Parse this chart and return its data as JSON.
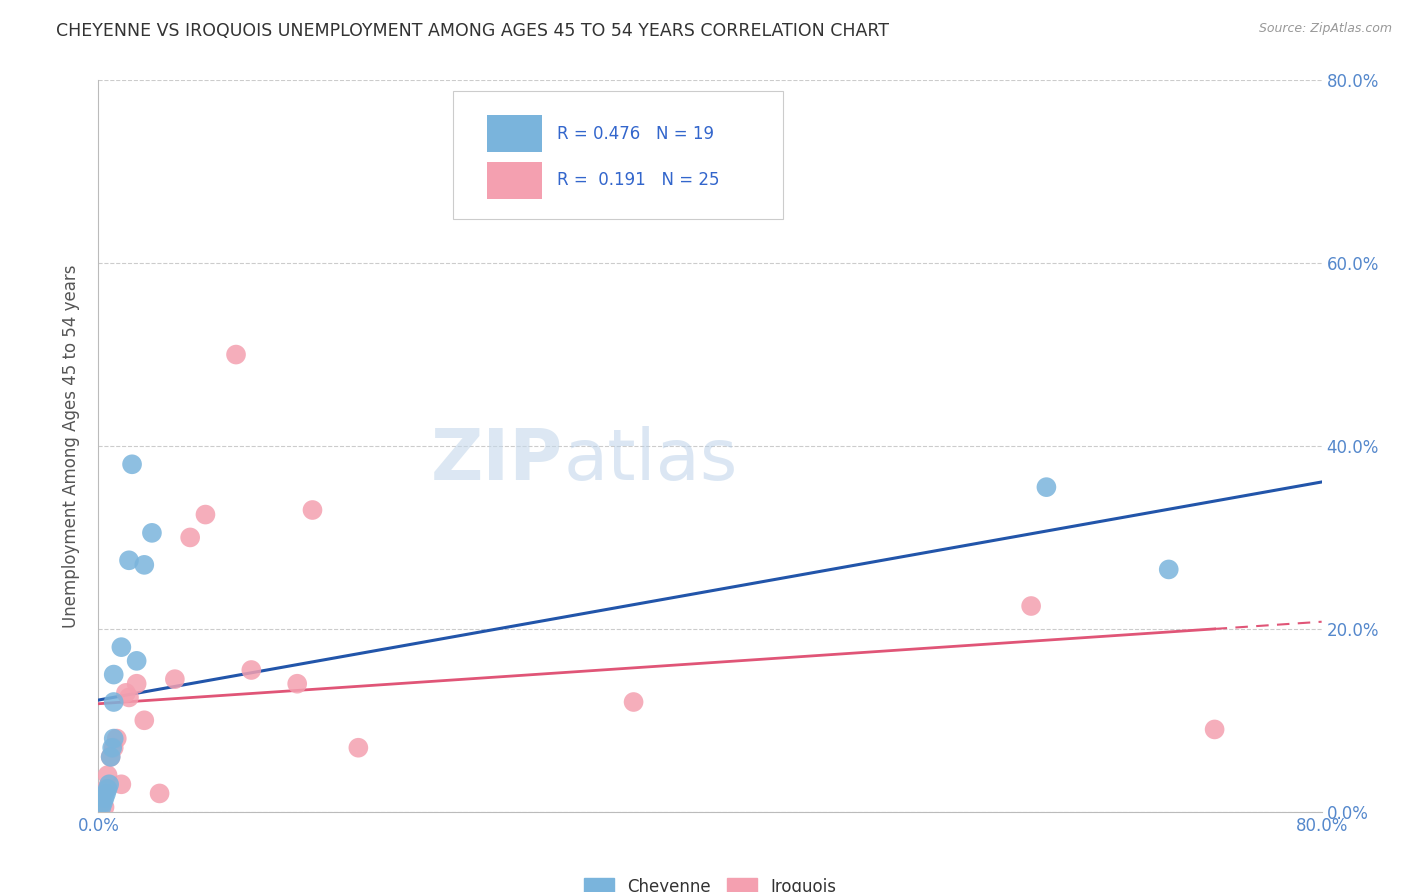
{
  "title": "CHEYENNE VS IROQUOIS UNEMPLOYMENT AMONG AGES 45 TO 54 YEARS CORRELATION CHART",
  "source": "Source: ZipAtlas.com",
  "ylabel": "Unemployment Among Ages 45 to 54 years",
  "xlim": [
    0.0,
    0.8
  ],
  "ylim": [
    0.0,
    0.8
  ],
  "xticks": [
    0.0,
    0.2,
    0.4,
    0.6,
    0.8
  ],
  "yticks": [
    0.0,
    0.2,
    0.4,
    0.6,
    0.8
  ],
  "xticklabels": [
    "0.0%",
    "",
    "",
    "",
    "80.0%"
  ],
  "yticklabels_right": [
    "0.0%",
    "20.0%",
    "40.0%",
    "60.0%",
    "80.0%"
  ],
  "cheyenne_color": "#7ab4dc",
  "iroquois_color": "#f4a0b0",
  "trendline_cheyenne_color": "#2255aa",
  "trendline_iroquois_color": "#e05577",
  "legend_r_cheyenne": "0.476",
  "legend_n_cheyenne": "19",
  "legend_r_iroquois": "0.191",
  "legend_n_iroquois": "25",
  "cheyenne_x": [
    0.002,
    0.003,
    0.004,
    0.005,
    0.006,
    0.007,
    0.008,
    0.009,
    0.01,
    0.01,
    0.01,
    0.015,
    0.02,
    0.022,
    0.025,
    0.03,
    0.035,
    0.62,
    0.7
  ],
  "cheyenne_y": [
    0.005,
    0.01,
    0.015,
    0.02,
    0.025,
    0.03,
    0.06,
    0.07,
    0.08,
    0.12,
    0.15,
    0.18,
    0.275,
    0.38,
    0.165,
    0.27,
    0.305,
    0.355,
    0.265
  ],
  "iroquois_x": [
    0.002,
    0.003,
    0.004,
    0.005,
    0.006,
    0.008,
    0.01,
    0.012,
    0.015,
    0.018,
    0.02,
    0.025,
    0.03,
    0.04,
    0.05,
    0.06,
    0.07,
    0.09,
    0.1,
    0.13,
    0.14,
    0.17,
    0.35,
    0.61,
    0.73
  ],
  "iroquois_y": [
    0.01,
    0.02,
    0.005,
    0.025,
    0.04,
    0.06,
    0.07,
    0.08,
    0.03,
    0.13,
    0.125,
    0.14,
    0.1,
    0.02,
    0.145,
    0.3,
    0.325,
    0.5,
    0.155,
    0.14,
    0.33,
    0.07,
    0.12,
    0.225,
    0.09
  ],
  "background_color": "#ffffff",
  "grid_color": "#cccccc",
  "title_color": "#333333",
  "axis_label_color": "#555555",
  "tick_label_color": "#5588cc"
}
